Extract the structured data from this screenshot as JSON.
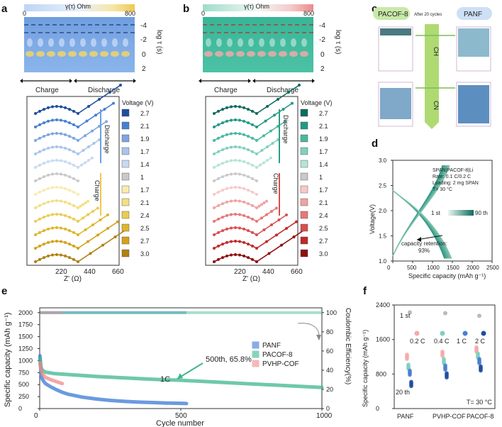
{
  "panels": {
    "a": {
      "letter": "a",
      "colorbar_title": "γ(τ) Ohm",
      "cb_min": "0",
      "cb_max": "800",
      "ylabel": "log τ (s)",
      "yticks": [
        "-4",
        "-2",
        "0",
        "2"
      ],
      "charge": "Charge",
      "discharge": "Discharge"
    },
    "b": {
      "letter": "b",
      "colorbar_title": "γ(τ) Ohm",
      "cb_min": "0",
      "cb_max": "800",
      "ylabel": "log τ (s)",
      "yticks": [
        "-4",
        "-2",
        "0",
        "2"
      ],
      "charge": "Charge",
      "discharge": "Discharge"
    },
    "c": {
      "letter": "c",
      "left_label": "PACOF-8",
      "mid_label": "After 20 cycles",
      "right_label": "PANF",
      "ch_label": "CH",
      "cn_label": "CN"
    },
    "d": {
      "letter": "d",
      "info": [
        "SPAN|PACOF-8|Li",
        "Rate: 0.1 C/0.2 C",
        "Loading: 2 mg SPAN",
        "T= 30 °C"
      ],
      "cycle_start": "1 st",
      "cycle_end": "90 th",
      "annotation": "capacity retention:",
      "annotation2": "93%"
    },
    "e": {
      "letter": "e",
      "annotation": "500th, 65.8%",
      "rate": "1C"
    },
    "f": {
      "letter": "f",
      "first": "1 st",
      "last": "20 th",
      "rates": [
        "0.2 C",
        "0.4 C",
        "1 C",
        "2 C"
      ],
      "temp": "T= 30 °C"
    },
    "nyquist_left": {
      "xlabel": "Z' (Ω)",
      "xticks": [
        "220",
        "440",
        "660"
      ],
      "discharge": "Discharge",
      "charge": "Charge",
      "legend_title": "Voltage (V)",
      "voltages": [
        "2.7",
        "2.1",
        "1.9",
        "1.7",
        "1.4",
        "1",
        "1.7",
        "2.1",
        "2.4",
        "2.5",
        "2.7",
        "3.0"
      ],
      "colors": [
        "#1f4e9c",
        "#4a7fd0",
        "#7ba6e0",
        "#a8c4ec",
        "#c8daf2",
        "#c9c9c9",
        "#f7ecb0",
        "#f3df84",
        "#eccb52",
        "#e0b52a",
        "#d4a11a",
        "#b08010"
      ]
    },
    "nyquist_right": {
      "xlabel": "Z' (Ω)",
      "xticks": [
        "220",
        "440",
        "660"
      ],
      "discharge": "Discharge",
      "charge": "Charge",
      "legend_title": "Voltage (V)",
      "voltages": [
        "2.7",
        "2.1",
        "1.9",
        "1.7",
        "1.4",
        "1",
        "1.7",
        "2.1",
        "2.4",
        "2.5",
        "2.7",
        "3.0"
      ],
      "colors": [
        "#0c6b5e",
        "#229a87",
        "#48b8a3",
        "#80d0bf",
        "#b5e4d8",
        "#c9c9c9",
        "#f7c9c9",
        "#f0a2a2",
        "#e77878",
        "#d94e4e",
        "#c02a2a",
        "#8f0f0f"
      ]
    }
  },
  "chart_data": [
    {
      "type": "line",
      "id": "d",
      "title": "",
      "xlabel": "Specific capacity (mAh g⁻¹)",
      "ylabel": "Voltage(V)",
      "xlim": [
        0,
        2500
      ],
      "ylim": [
        1.0,
        3.0
      ],
      "xticks": [
        "0",
        "500",
        "1000",
        "1500",
        "2000",
        "2500"
      ],
      "yticks": [
        "1.0",
        "1.5",
        "2.0",
        "2.5",
        "3.0"
      ]
    },
    {
      "type": "scatter",
      "id": "e",
      "xlabel": "Cycle number",
      "ylabel": "Specific capacity (mAh g⁻¹)",
      "y2label": "Coulombic Efficiency(%)",
      "xlim": [
        0,
        1000
      ],
      "ylim": [
        0,
        2100
      ],
      "y2lim": [
        0,
        105
      ],
      "xticks": [
        "0",
        "500",
        "1000"
      ],
      "yticks": [
        "0",
        "250",
        "500",
        "750",
        "1000",
        "1250",
        "1500",
        "1750",
        "2000"
      ],
      "y2ticks": [
        "0",
        "20",
        "40",
        "60",
        "80",
        "100"
      ],
      "series": [
        {
          "name": "PANF",
          "color": "#3a78d4",
          "x": [
            1,
            5,
            10,
            20,
            40,
            60,
            80,
            100,
            150,
            200,
            250,
            300,
            350,
            400,
            450,
            500,
            520
          ],
          "y": [
            1100,
            700,
            600,
            520,
            450,
            390,
            340,
            300,
            240,
            200,
            170,
            150,
            135,
            125,
            115,
            110,
            105
          ]
        },
        {
          "name": "PACOF-8",
          "color": "#3fb58f",
          "x": [
            1,
            5,
            10,
            20,
            50,
            100,
            200,
            300,
            400,
            500,
            600,
            700,
            800,
            900,
            1000
          ],
          "y": [
            1050,
            850,
            800,
            760,
            730,
            710,
            670,
            640,
            610,
            590,
            560,
            530,
            500,
            470,
            440
          ]
        },
        {
          "name": "PVHP-COF",
          "color": "#f08a8a",
          "x": [
            1,
            5,
            10,
            20,
            40,
            60,
            80
          ],
          "y": [
            950,
            800,
            720,
            650,
            600,
            560,
            520
          ]
        }
      ],
      "ce": {
        "value": 100
      }
    },
    {
      "type": "scatter",
      "id": "f",
      "ylabel": "Specific capacity (mAh g⁻¹)",
      "categories": [
        "PANF",
        "PVHP-COF",
        "PACOF-8"
      ],
      "ylim": [
        0,
        2400
      ],
      "yticks": [
        "0",
        "800",
        "1600",
        "2400"
      ],
      "first_cycle": [
        2230,
        2210,
        2150
      ],
      "rate_groups": {
        "PANF": [
          1250,
          1020,
          880,
          620
        ],
        "PVHP-COF": [
          1320,
          1150,
          1000,
          820
        ],
        "PACOF-8": [
          1420,
          1280,
          1150,
          980
        ]
      }
    }
  ]
}
